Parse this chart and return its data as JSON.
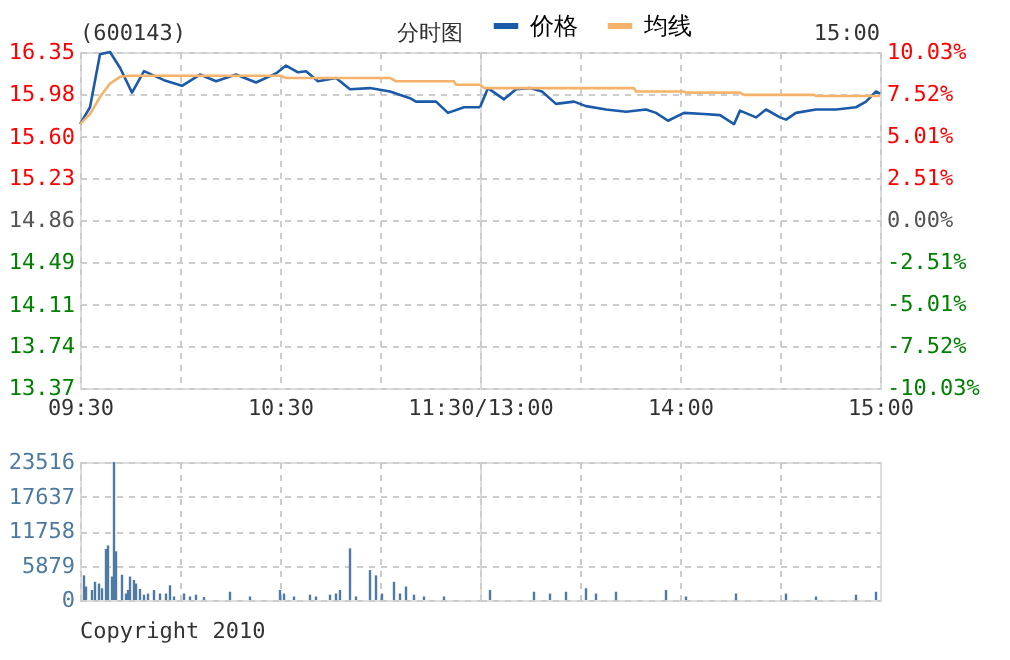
{
  "chart_data": [
    {
      "type": "line",
      "title": "(600143)",
      "subtitle": "分时图",
      "xlim": [
        9.5,
        11.5
      ],
      "xticks": [
        {
          "value": 9.5,
          "label": "09:30"
        },
        {
          "value": 10,
          "label": null
        },
        {
          "value": 10.5,
          "label": "10:30"
        },
        {
          "value": 11,
          "label": null
        },
        {
          "value": 11.5,
          "label": "11:30/13:00"
        }
      ],
      "ylim": [
        13.37,
        16.35
      ],
      "yticks": [
        16.35,
        15.98,
        {
          "value": 15.6,
          "label": "15.60"
        },
        15.23,
        14.86,
        14.49,
        14.11,
        13.74,
        13.37
      ],
      "grid": true,
      "legend": "top",
      "series": [
        {
          "name": "价格",
          "color": "#1a5aa8",
          "x": [
            9.5,
            9.55,
            9.6,
            9.65,
            9.7,
            9.76,
            9.82,
            9.92,
            10.01,
            10.1,
            10.18,
            10.28,
            10.38,
            10.48,
            10.53,
            10.59,
            10.63,
            10.69,
            10.78,
            10.85,
            10.95,
            11.05,
            11.15,
            11.18,
            11.28,
            11.34,
            11.42,
            11.5
          ],
          "values": [
            15.71,
            15.86,
            16.33,
            16.35,
            16.21,
            15.99,
            16.18,
            16.1,
            16.05,
            16.15,
            16.09,
            16.15,
            16.08,
            16.16,
            16.23,
            16.17,
            16.18,
            16.09,
            16.12,
            16.02,
            16.03,
            16.0,
            15.94,
            15.91,
            15.91,
            15.81,
            15.86,
            15.86
          ]
        },
        {
          "name": "均线",
          "color": "#f5b26b",
          "x": [
            9.5,
            9.55,
            9.6,
            9.65,
            9.7,
            9.75,
            10.5,
            10.53,
            11.05,
            11.08,
            11.37,
            11.38,
            11.5
          ],
          "values": [
            15.71,
            15.8,
            15.95,
            16.07,
            16.13,
            16.14,
            16.14,
            16.12,
            16.12,
            16.09,
            16.09,
            16.06,
            16.06
          ]
        }
      ]
    },
    {
      "type": "line",
      "annotations": [
        "15:00"
      ],
      "xlim": [
        13,
        15
      ],
      "xticks": [
        {
          "value": 13,
          "label": null
        },
        {
          "value": 13.5,
          "label": null
        },
        {
          "value": 14,
          "label": "14:00"
        },
        {
          "value": 14.5,
          "label": null
        },
        {
          "value": 15,
          "label": "15:00"
        }
      ],
      "ylim": [
        13.37,
        16.35
      ],
      "yticks": [
        16.35,
        15.98,
        15.6,
        15.23,
        14.86,
        14.49,
        14.11,
        13.74,
        13.37
      ],
      "y2lim": [
        -10.03,
        10.03
      ],
      "y2ticks": [
        {
          "value": 10.03,
          "label": "10.03%"
        },
        {
          "value": 7.52,
          "label": "7.52%"
        },
        {
          "value": 5.01,
          "label": "5.01%"
        },
        {
          "value": 2.51,
          "label": "2.51%"
        },
        {
          "value": 0,
          "label": "0.00%"
        },
        {
          "value": -2.51,
          "label": "-2.51%"
        },
        {
          "value": -5.01,
          "label": "-5.01%"
        },
        {
          "value": -7.52,
          "label": "-7.52%"
        },
        {
          "value": -10.03,
          "label": "-10.03%"
        }
      ],
      "grid": true,
      "tick_labels": "x",
      "series": [
        {
          "color": "#1a5aa8",
          "x": [
            13.0,
            13.04,
            13.12,
            13.18,
            13.25,
            13.31,
            13.38,
            13.47,
            13.53,
            13.63,
            13.73,
            13.83,
            13.88,
            13.94,
            14.02,
            14.12,
            14.2,
            14.27,
            14.3,
            14.38,
            14.43,
            14.5,
            14.53,
            14.58,
            14.68,
            14.78,
            14.88,
            14.93,
            14.98,
            15.0
          ],
          "values": [
            15.86,
            16.03,
            15.93,
            16.02,
            16.03,
            16.0,
            15.89,
            15.91,
            15.87,
            15.84,
            15.82,
            15.84,
            15.81,
            15.74,
            15.81,
            15.8,
            15.79,
            15.71,
            15.83,
            15.77,
            15.84,
            15.77,
            15.75,
            15.81,
            15.84,
            15.84,
            15.86,
            15.91,
            16.0,
            15.98
          ]
        },
        {
          "color": "#f5b26b",
          "x": [
            13.0,
            13.02,
            13.77,
            13.78,
            14.02,
            14.03,
            14.3,
            14.32,
            14.67,
            14.68,
            15.0
          ],
          "values": [
            16.06,
            16.03,
            16.03,
            16.0,
            16.0,
            15.99,
            15.99,
            15.97,
            15.97,
            15.96,
            15.96
          ]
        }
      ]
    },
    {
      "type": "bar",
      "color": "#4f7ba3",
      "annotations": [
        "Copyright 2010"
      ],
      "xlim": [
        9.5,
        11.5
      ],
      "xticks": [
        {
          "value": 9.5,
          "label": null
        },
        {
          "value": 10,
          "label": null
        },
        {
          "value": 10.5,
          "label": null
        },
        {
          "value": 11,
          "label": null
        }
      ],
      "ylim": [
        0,
        23516
      ],
      "yticks": [
        0,
        5879,
        11758,
        17637,
        23516
      ],
      "grid": true,
      "tick_labels": "y",
      "x": [
        9.52,
        9.53,
        9.56,
        9.575,
        9.595,
        9.61,
        9.63,
        9.64,
        9.66,
        9.67,
        9.68,
        9.71,
        9.73,
        9.74,
        9.75,
        9.77,
        9.78,
        9.8,
        9.82,
        9.84,
        9.87,
        9.9,
        9.93,
        9.95,
        9.97,
        10.02,
        10.05,
        10.08,
        10.12,
        10.25,
        10.35,
        10.5,
        10.52,
        10.57,
        10.65,
        10.68,
        10.75,
        10.78,
        10.8,
        10.85,
        10.88,
        10.95,
        10.98,
        11.01,
        11.07,
        11.1,
        11.13,
        11.17,
        11.22,
        11.32
      ],
      "values": [
        4200,
        2300,
        1700,
        3100,
        2800,
        2000,
        8700,
        9300,
        4000,
        23500,
        8300,
        4300,
        1100,
        1700,
        4000,
        3400,
        2800,
        1900,
        900,
        1100,
        1700,
        1100,
        1100,
        2500,
        600,
        1100,
        600,
        900,
        500,
        1400,
        600,
        1700,
        1100,
        600,
        900,
        600,
        900,
        1100,
        1700,
        8800,
        600,
        5100,
        4200,
        1100,
        3100,
        1100,
        2300,
        900,
        600,
        600
      ]
    },
    {
      "type": "bar",
      "color": "#4f7ba3",
      "xlim": [
        13,
        15
      ],
      "xticks": [
        {
          "value": 13,
          "label": null
        },
        {
          "value": 13.5,
          "label": null
        },
        {
          "value": 14,
          "label": null
        },
        {
          "value": 14.5,
          "label": null
        }
      ],
      "ylim": [
        0,
        23516
      ],
      "yticks": [
        0,
        5879,
        11758,
        17637,
        23516
      ],
      "grid": true,
      "tick_labels": false,
      "x": [
        13.05,
        13.27,
        13.35,
        13.43,
        13.53,
        13.58,
        13.68,
        13.93,
        14.03,
        14.28,
        14.53,
        14.68,
        14.88,
        14.98
      ],
      "values": [
        1700,
        1400,
        1100,
        1400,
        2000,
        1100,
        1400,
        1700,
        600,
        1100,
        1100,
        600,
        900,
        1400
      ]
    }
  ]
}
